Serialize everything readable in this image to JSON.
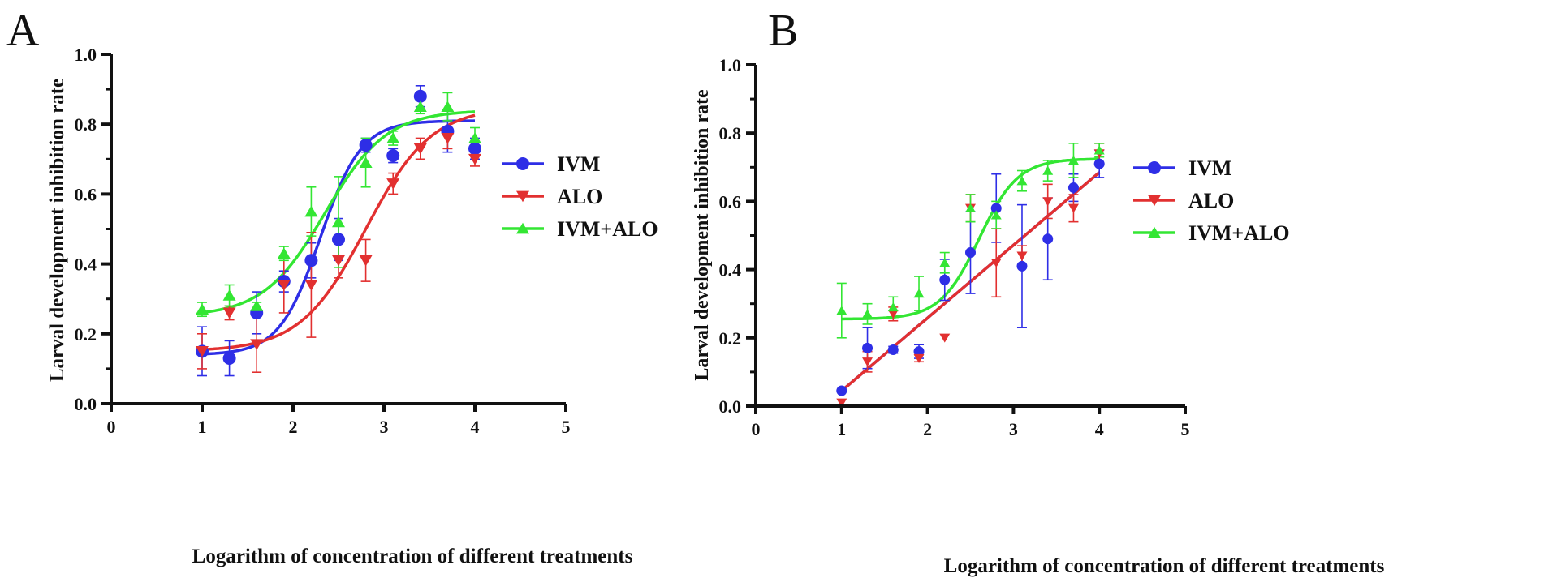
{
  "chart_data": [
    {
      "panel_label": "A",
      "type": "scatter",
      "xlabel": "Logarithm of concentration of different treatments",
      "ylabel": "Larval development inhibition rate",
      "xlim": [
        0,
        5
      ],
      "ylim": [
        0,
        1.0
      ],
      "xticks": [
        "0",
        "1",
        "2",
        "3",
        "4",
        "5"
      ],
      "yticks": [
        "0.0",
        "0.2",
        "0.4",
        "0.6",
        "0.8",
        "1.0"
      ],
      "legend_position": "right",
      "series": [
        {
          "name": "IVM",
          "color": "#2e2ee6",
          "marker": "circle",
          "x": [
            1,
            1.3,
            1.6,
            1.9,
            2.2,
            2.5,
            2.8,
            3.1,
            3.4,
            3.7,
            4
          ],
          "y": [
            0.15,
            0.13,
            0.26,
            0.35,
            0.41,
            0.47,
            0.74,
            0.71,
            0.88,
            0.78,
            0.73
          ],
          "err": [
            0.07,
            0.05,
            0.06,
            0.03,
            0.05,
            0.06,
            0.02,
            0.02,
            0.03,
            0.06,
            0.03
          ],
          "fit": {
            "bottom": 0.14,
            "top": 0.81,
            "logec50": 2.3,
            "hill": 1.2
          }
        },
        {
          "name": "ALO",
          "color": "#e23030",
          "marker": "triangle-down",
          "x": [
            1,
            1.3,
            1.6,
            1.9,
            2.2,
            2.5,
            2.8,
            3.1,
            3.4,
            3.7,
            4
          ],
          "y": [
            0.15,
            0.26,
            0.17,
            0.34,
            0.34,
            0.41,
            0.41,
            0.63,
            0.73,
            0.76,
            0.7
          ],
          "err": [
            0.05,
            0.02,
            0.08,
            0.08,
            0.15,
            0.05,
            0.06,
            0.03,
            0.03,
            0.03,
            0.02
          ],
          "fit": {
            "bottom": 0.15,
            "top": 0.85,
            "logec50": 2.8,
            "hill": 0.75
          }
        },
        {
          "name": "IVM+ALO",
          "color": "#33e633",
          "marker": "triangle-up",
          "x": [
            1,
            1.3,
            1.6,
            1.9,
            2.2,
            2.5,
            2.8,
            3.1,
            3.4,
            3.7,
            4
          ],
          "y": [
            0.27,
            0.31,
            0.28,
            0.43,
            0.55,
            0.52,
            0.69,
            0.76,
            0.85,
            0.85,
            0.76
          ],
          "err": [
            0.02,
            0.03,
            0.01,
            0.02,
            0.07,
            0.13,
            0.07,
            0.02,
            0.02,
            0.04,
            0.03
          ],
          "fit": {
            "bottom": 0.25,
            "top": 0.84,
            "logec50": 2.35,
            "hill": 0.8
          }
        }
      ]
    },
    {
      "panel_label": "B",
      "type": "scatter",
      "xlabel": "Logarithm of concentration of different treatments",
      "ylabel": "Larval development inhibition rate",
      "xlim": [
        0,
        5
      ],
      "ylim": [
        0,
        1.0
      ],
      "xticks": [
        "0",
        "1",
        "2",
        "3",
        "4",
        "5"
      ],
      "yticks": [
        "0.0",
        "0.2",
        "0.4",
        "0.6",
        "0.8",
        "1.0"
      ],
      "legend_position": "right",
      "series": [
        {
          "name": "IVM",
          "color": "#2e2ee6",
          "marker": "circle",
          "x": [
            1,
            1.3,
            1.6,
            1.9,
            2.2,
            2.5,
            2.8,
            3.1,
            3.4,
            3.7,
            4
          ],
          "y": [
            0.045,
            0.17,
            0.165,
            0.16,
            0.37,
            0.45,
            0.58,
            0.41,
            0.49,
            0.64,
            0.71
          ],
          "err": [
            0.0,
            0.06,
            0.01,
            0.02,
            0.06,
            0.12,
            0.1,
            0.18,
            0.12,
            0.04,
            0.04
          ],
          "fit": {
            "type": "linear",
            "slope": 0.2133,
            "intercept": -0.1683
          }
        },
        {
          "name": "ALO",
          "color": "#e23030",
          "marker": "triangle-down",
          "x": [
            1,
            1.3,
            1.6,
            1.9,
            2.2,
            2.5,
            2.8,
            3.1,
            3.4,
            3.7,
            4
          ],
          "y": [
            0.01,
            0.13,
            0.27,
            0.14,
            0.2,
            0.58,
            0.42,
            0.44,
            0.6,
            0.58,
            0.74
          ],
          "err": [
            0.0,
            0.03,
            0.02,
            0.01,
            0.0,
            0.04,
            0.1,
            0.03,
            0.05,
            0.04,
            0.03
          ],
          "fit": {
            "type": "linear",
            "slope": 0.2133,
            "intercept": -0.1683
          }
        },
        {
          "name": "IVM+ALO",
          "color": "#33e633",
          "marker": "triangle-up",
          "x": [
            1,
            1.3,
            1.6,
            1.9,
            2.2,
            2.5,
            2.8,
            3.1,
            3.4,
            3.7,
            4
          ],
          "y": [
            0.28,
            0.27,
            0.29,
            0.33,
            0.42,
            0.58,
            0.56,
            0.66,
            0.69,
            0.72,
            0.75
          ],
          "err": [
            0.08,
            0.03,
            0.03,
            0.05,
            0.03,
            0.04,
            0.04,
            0.03,
            0.03,
            0.05,
            0.02
          ],
          "fit": {
            "bottom": 0.255,
            "top": 0.725,
            "logec50": 2.6,
            "hill": 1.2
          }
        }
      ]
    }
  ]
}
